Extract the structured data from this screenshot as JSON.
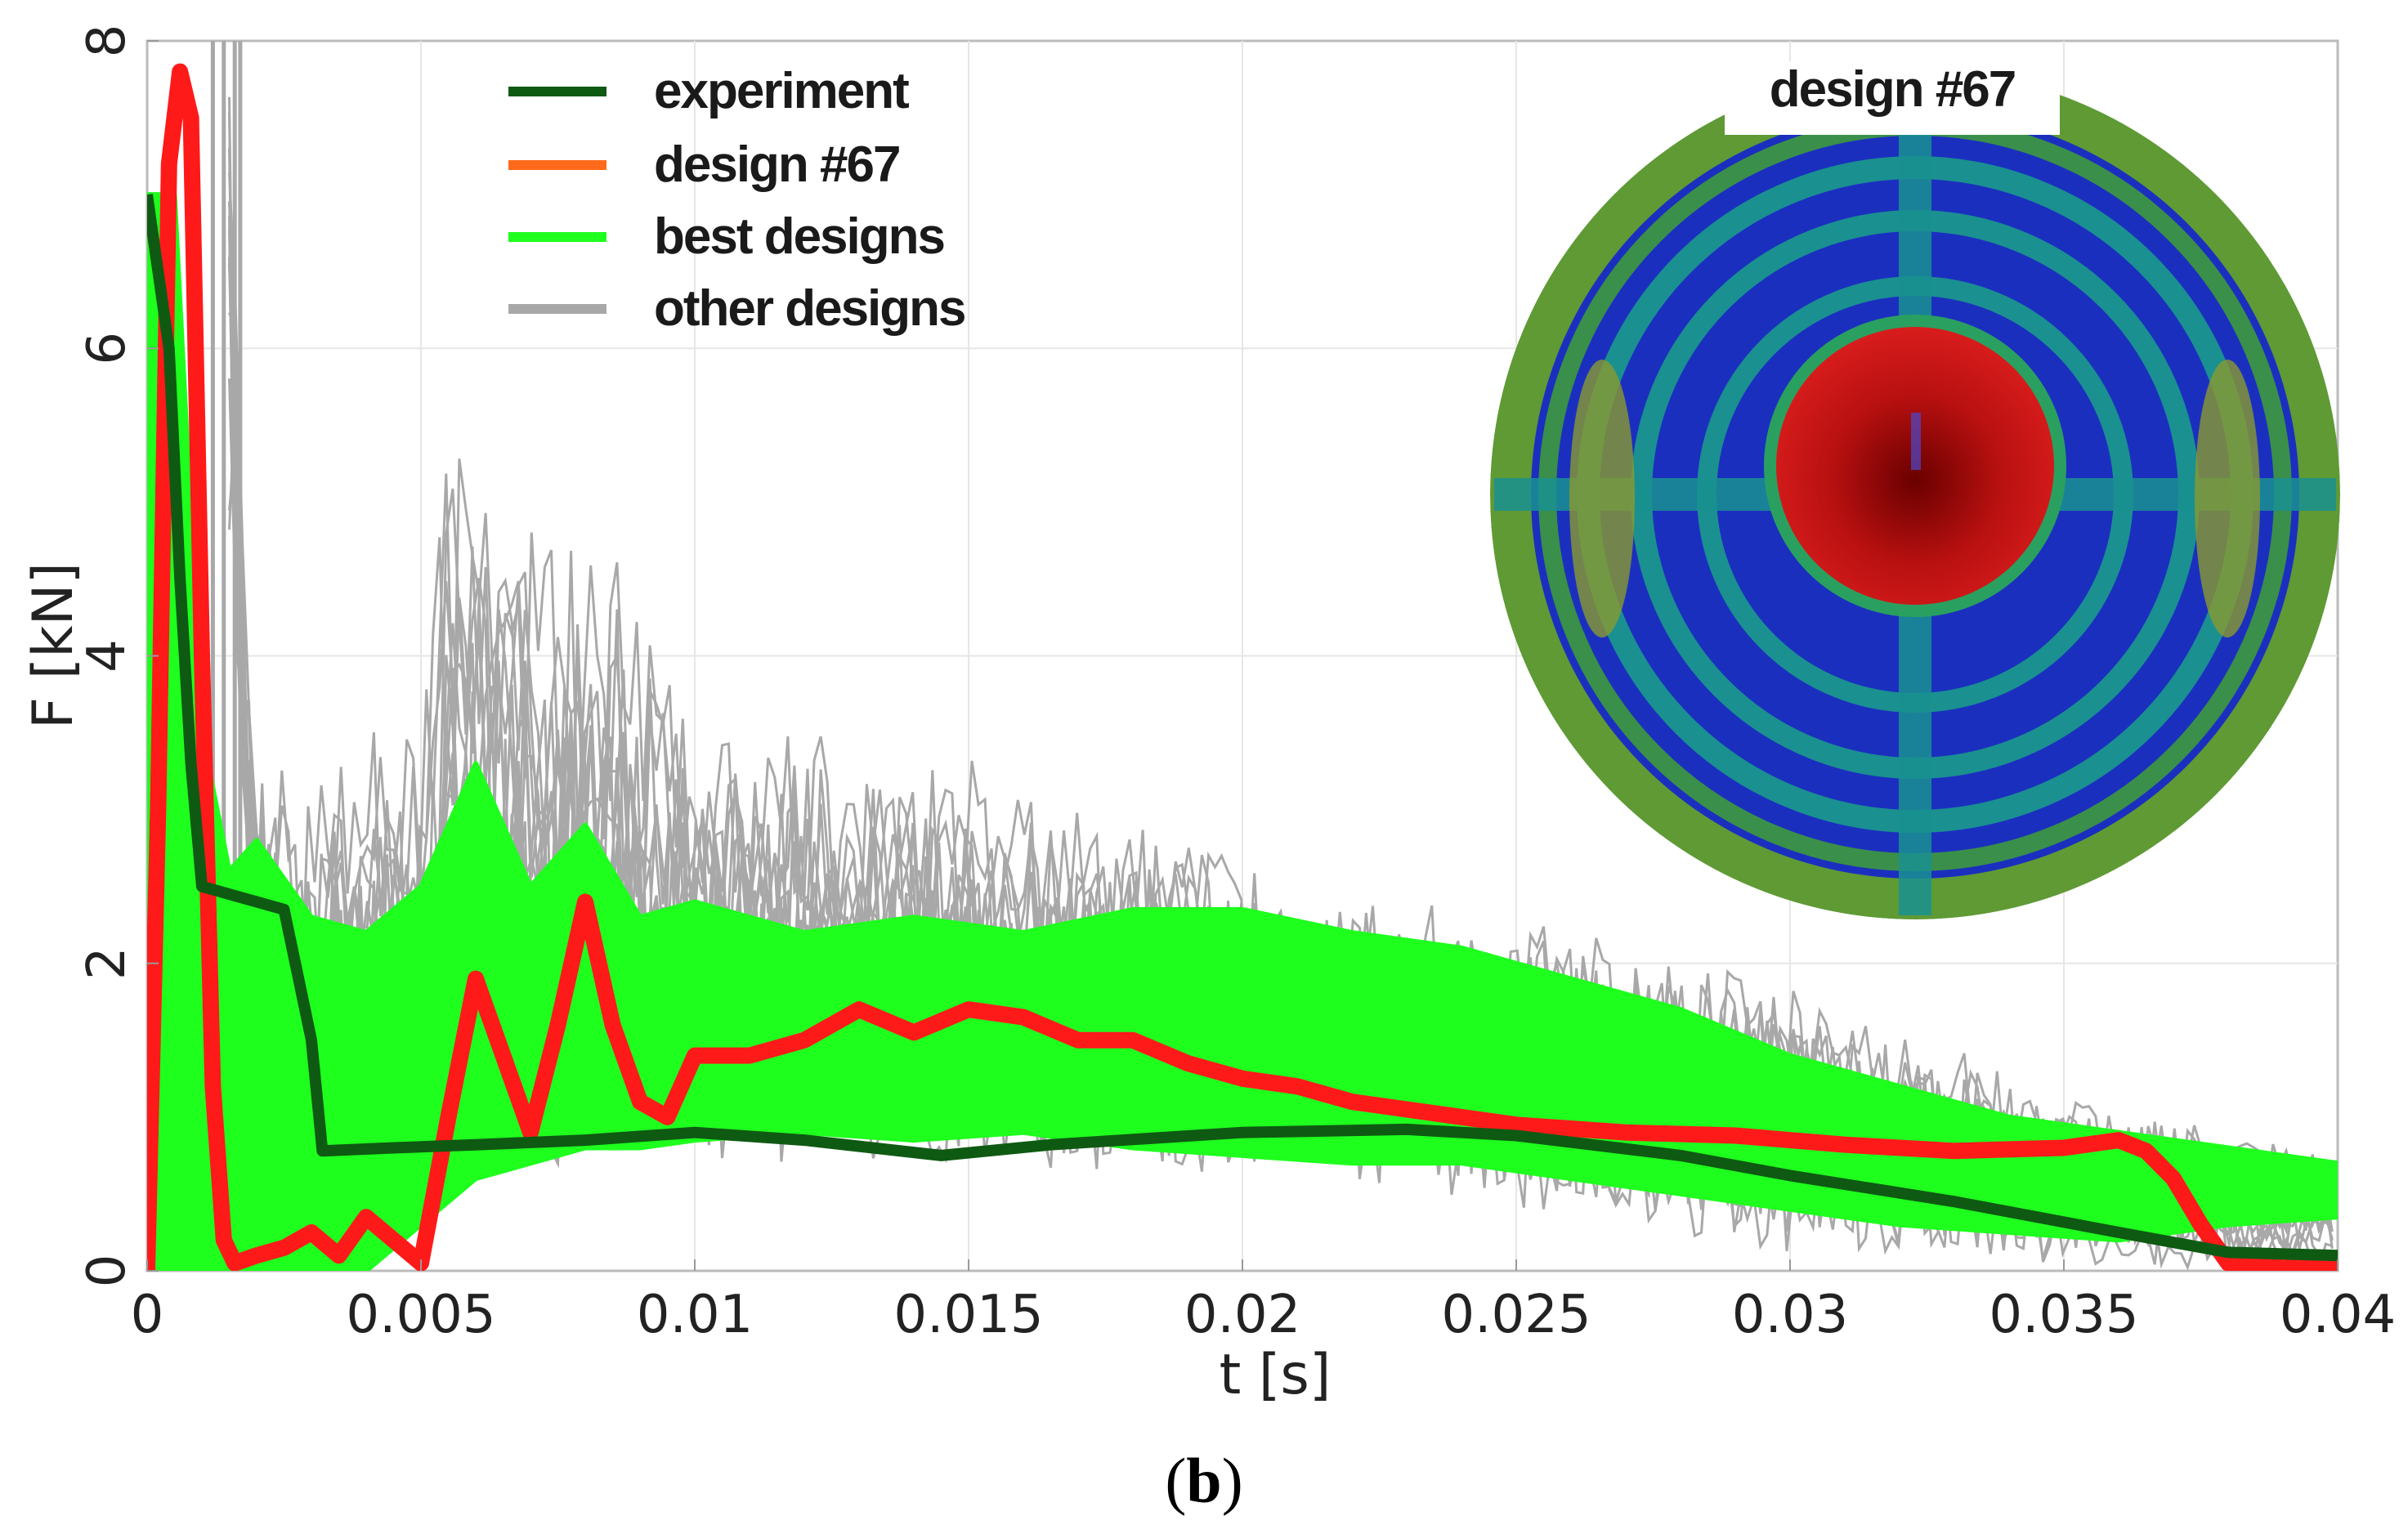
{
  "chart_data": {
    "type": "line",
    "xlabel": "t [s]",
    "ylabel": "F [kN]",
    "xlim": [
      0,
      0.04
    ],
    "ylim": [
      0,
      8
    ],
    "xticks": [
      "0",
      "0.005",
      "0.01",
      "0.015",
      "0.02",
      "0.025",
      "0.03",
      "0.035",
      "0.04"
    ],
    "yticks": [
      "0",
      "2",
      "4",
      "6",
      "8"
    ],
    "grid": true,
    "legend_position": "top-left",
    "series": [
      {
        "name": "experiment",
        "color": "#0e5a12",
        "x": [
          0,
          0.0004,
          0.0006,
          0.0008,
          0.001,
          0.0015,
          0.0025,
          0.003,
          0.0032,
          0.0045,
          0.006,
          0.008,
          0.01,
          0.012,
          0.0145,
          0.0165,
          0.02,
          0.023,
          0.025,
          0.028,
          0.03,
          0.033,
          0.036,
          0.038,
          0.04
        ],
        "y": [
          7.0,
          6.0,
          4.5,
          3.3,
          2.5,
          2.45,
          2.35,
          1.5,
          0.78,
          0.8,
          0.82,
          0.85,
          0.9,
          0.85,
          0.75,
          0.82,
          0.9,
          0.92,
          0.88,
          0.75,
          0.62,
          0.45,
          0.25,
          0.12,
          0.1
        ]
      },
      {
        "name": "design #67",
        "color": "#ff1a1a",
        "legend_color": "#ff6a1a",
        "x": [
          0,
          0.0002,
          0.0004,
          0.0006,
          0.0008,
          0.001,
          0.0012,
          0.0014,
          0.0016,
          0.002,
          0.0025,
          0.003,
          0.0035,
          0.004,
          0.0045,
          0.005,
          0.0055,
          0.006,
          0.0065,
          0.007,
          0.0075,
          0.008,
          0.0085,
          0.009,
          0.0095,
          0.01,
          0.011,
          0.012,
          0.013,
          0.014,
          0.015,
          0.016,
          0.017,
          0.018,
          0.019,
          0.02,
          0.021,
          0.022,
          0.023,
          0.024,
          0.025,
          0.027,
          0.029,
          0.031,
          0.033,
          0.035,
          0.036,
          0.0365,
          0.037,
          0.0375,
          0.038,
          0.039,
          0.04
        ],
        "y": [
          0,
          3.0,
          7.2,
          7.8,
          7.5,
          4.0,
          1.2,
          0.2,
          0.05,
          0.1,
          0.15,
          0.25,
          0.1,
          0.35,
          0.2,
          0.05,
          1.0,
          1.9,
          1.4,
          0.9,
          1.6,
          2.4,
          1.6,
          1.1,
          1.0,
          1.4,
          1.4,
          1.5,
          1.7,
          1.55,
          1.7,
          1.65,
          1.5,
          1.5,
          1.35,
          1.25,
          1.2,
          1.1,
          1.05,
          1.0,
          0.95,
          0.9,
          0.88,
          0.82,
          0.78,
          0.8,
          0.85,
          0.78,
          0.6,
          0.3,
          0.05,
          0.02,
          0.02
        ]
      },
      {
        "name": "best designs",
        "color": "#1eff1e",
        "x": [
          0,
          0.0005,
          0.001,
          0.0015,
          0.002,
          0.003,
          0.004,
          0.005,
          0.006,
          0.007,
          0.008,
          0.009,
          0.01,
          0.012,
          0.014,
          0.016,
          0.018,
          0.02,
          0.022,
          0.024,
          0.026,
          0.028,
          0.03,
          0.032,
          0.034,
          0.036,
          0.038,
          0.04
        ],
        "y_upper": [
          7.0,
          7.0,
          3.5,
          2.6,
          2.8,
          2.3,
          2.2,
          2.5,
          3.3,
          2.5,
          2.9,
          2.3,
          2.4,
          2.2,
          2.3,
          2.2,
          2.35,
          2.35,
          2.2,
          2.1,
          1.9,
          1.7,
          1.4,
          1.2,
          1.0,
          0.9,
          0.8,
          0.7
        ],
        "y_lower": [
          0.0,
          0.0,
          0.0,
          0.0,
          0.0,
          0.0,
          0.0,
          0.3,
          0.6,
          0.7,
          0.8,
          0.8,
          0.85,
          0.9,
          0.85,
          0.9,
          0.8,
          0.75,
          0.7,
          0.7,
          0.6,
          0.5,
          0.4,
          0.3,
          0.25,
          0.2,
          0.3,
          0.35
        ]
      },
      {
        "name": "other designs",
        "color": "#a8a8a8",
        "x": [
          0,
          0.001,
          0.0015,
          0.0018,
          0.002,
          0.003,
          0.005,
          0.0055,
          0.0065,
          0.0085,
          0.01,
          0.015,
          0.02,
          0.025,
          0.03,
          0.035,
          0.04
        ],
        "y_upper": [
          0,
          8.0,
          8.0,
          4.0,
          3.2,
          3.2,
          3.5,
          5.4,
          4.9,
          4.5,
          3.5,
          3.2,
          2.6,
          2.2,
          1.8,
          1.1,
          0.7
        ],
        "y_lower": [
          0,
          0,
          0,
          0,
          0,
          0,
          0.3,
          0.5,
          0.6,
          0.6,
          0.7,
          0.7,
          0.6,
          0.4,
          0.1,
          0.0,
          0.0
        ]
      }
    ],
    "legend": [
      "experiment",
      "design #67",
      "best designs",
      "other designs"
    ],
    "inset": {
      "title": "design #67",
      "colors": {
        "outer_ring": "#6a9a3a",
        "band": "#1b2fbf",
        "mid": "#1a9090",
        "hot": "#cc1010"
      }
    }
  },
  "caption": {
    "open": "(",
    "letter": "b",
    "close": ")"
  }
}
